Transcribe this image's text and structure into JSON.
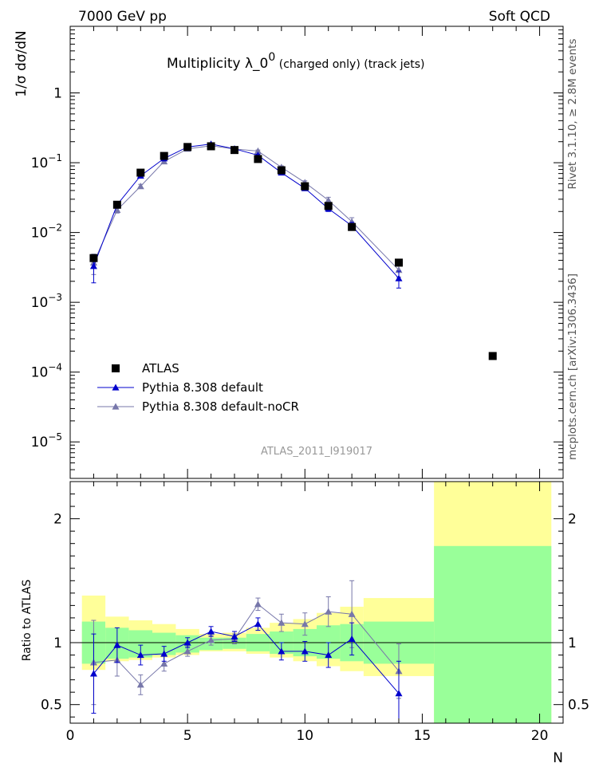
{
  "header": {
    "left": "7000 GeV pp",
    "right": "Soft QCD"
  },
  "side_text": {
    "rivet": "Rivet 3.1.10, ≥ 2.8M events",
    "mcplots": "mcplots.cern.ch [arXiv:1306.3436]"
  },
  "watermark": "ATLAS_2011_I919017",
  "colors": {
    "atlas": "#000000",
    "pythia_default": "#0000cc",
    "pythia_nocr": "#7777aa",
    "band_inner": "#99ff99",
    "band_outer": "#ffff99"
  },
  "chart_data": [
    {
      "type": "scatter",
      "panel": "main",
      "title": "Multiplicity  λ_0⁰ (charged only) (track jets)",
      "title_main": "Multiplicity  λ_0",
      "title_sup": "0",
      "title_suffix": " (charged only) (track jets)",
      "xlabel": "N",
      "ylabel": "1/σ dσ/dN",
      "yscale": "log",
      "xlim": [
        0,
        21
      ],
      "ylim": [
        3e-06,
        9
      ],
      "xticks": [
        0,
        5,
        10,
        15,
        20
      ],
      "ytick_labels": [
        {
          "value": 1,
          "base": "1",
          "exp": ""
        },
        {
          "value": 0.1,
          "base": "10",
          "exp": "−1"
        },
        {
          "value": 0.01,
          "base": "10",
          "exp": "−2"
        },
        {
          "value": 0.001,
          "base": "10",
          "exp": "−3"
        },
        {
          "value": 0.0001,
          "base": "10",
          "exp": "−4"
        },
        {
          "value": 1e-05,
          "base": "10",
          "exp": "−5"
        }
      ],
      "legend_position": "bottom-left",
      "series": [
        {
          "name": "ATLAS",
          "marker": "square",
          "x": [
            1,
            2,
            3,
            4,
            5,
            6,
            7,
            8,
            9,
            10,
            11,
            12,
            14,
            18
          ],
          "y": [
            0.0043,
            0.025,
            0.072,
            0.125,
            0.168,
            0.172,
            0.152,
            0.113,
            0.078,
            0.046,
            0.024,
            0.012,
            0.0037,
            0.00017
          ]
        },
        {
          "name": "Pythia 8.308 default",
          "marker": "triangle",
          "x": [
            1,
            2,
            3,
            4,
            5,
            6,
            7,
            8,
            9,
            10,
            11,
            12,
            14
          ],
          "y": [
            0.0033,
            0.025,
            0.065,
            0.115,
            0.168,
            0.185,
            0.158,
            0.128,
            0.072,
            0.043,
            0.022,
            0.0125,
            0.0022
          ],
          "yerr": [
            0.0014,
            0.002,
            0.003,
            0.004,
            0.005,
            0.005,
            0.005,
            0.004,
            0.003,
            0.002,
            0.002,
            0.0015,
            0.0006
          ]
        },
        {
          "name": "Pythia 8.308 default-noCR",
          "marker": "triangle",
          "x": [
            1,
            2,
            3,
            4,
            5,
            6,
            7,
            8,
            9,
            10,
            11,
            12,
            14
          ],
          "y": [
            0.0037,
            0.021,
            0.046,
            0.104,
            0.158,
            0.175,
            0.157,
            0.147,
            0.086,
            0.052,
            0.029,
            0.0143,
            0.0029
          ],
          "yerr": [
            0.0012,
            0.002,
            0.003,
            0.004,
            0.005,
            0.005,
            0.005,
            0.005,
            0.004,
            0.003,
            0.003,
            0.002,
            0.0006
          ]
        }
      ]
    },
    {
      "type": "scatter",
      "panel": "ratio",
      "xlabel": "N",
      "ylabel": "Ratio to ATLAS",
      "xlim": [
        0,
        21
      ],
      "ylim": [
        0.35,
        2.3
      ],
      "xticks": [
        0,
        5,
        10,
        15,
        20
      ],
      "yticks": [
        0.5,
        1,
        2
      ],
      "bands": [
        {
          "x0": 0.5,
          "x1": 1.5,
          "inner": [
            0.83,
            1.17
          ],
          "outer": [
            0.78,
            1.38
          ]
        },
        {
          "x0": 1.5,
          "x1": 2.5,
          "inner": [
            0.87,
            1.12
          ],
          "outer": [
            0.85,
            1.21
          ]
        },
        {
          "x0": 2.5,
          "x1": 3.5,
          "inner": [
            0.88,
            1.1
          ],
          "outer": [
            0.86,
            1.18
          ]
        },
        {
          "x0": 3.5,
          "x1": 4.5,
          "inner": [
            0.9,
            1.08
          ],
          "outer": [
            0.88,
            1.15
          ]
        },
        {
          "x0": 4.5,
          "x1": 5.5,
          "inner": [
            0.92,
            1.06
          ],
          "outer": [
            0.9,
            1.11
          ]
        },
        {
          "x0": 5.5,
          "x1": 6.5,
          "inner": [
            0.94,
            1.04
          ],
          "outer": [
            0.93,
            1.07
          ]
        },
        {
          "x0": 6.5,
          "x1": 7.5,
          "inner": [
            0.95,
            1.04
          ],
          "outer": [
            0.93,
            1.08
          ]
        },
        {
          "x0": 7.5,
          "x1": 8.5,
          "inner": [
            0.93,
            1.07
          ],
          "outer": [
            0.91,
            1.12
          ]
        },
        {
          "x0": 8.5,
          "x1": 9.5,
          "inner": [
            0.91,
            1.09
          ],
          "outer": [
            0.88,
            1.16
          ]
        },
        {
          "x0": 9.5,
          "x1": 10.5,
          "inner": [
            0.89,
            1.11
          ],
          "outer": [
            0.85,
            1.19
          ]
        },
        {
          "x0": 10.5,
          "x1": 11.5,
          "inner": [
            0.87,
            1.14
          ],
          "outer": [
            0.81,
            1.24
          ]
        },
        {
          "x0": 11.5,
          "x1": 12.5,
          "inner": [
            0.85,
            1.15
          ],
          "outer": [
            0.77,
            1.29
          ]
        },
        {
          "x0": 12.5,
          "x1": 15.5,
          "inner": [
            0.83,
            1.17
          ],
          "outer": [
            0.73,
            1.36
          ]
        },
        {
          "x0": 15.5,
          "x1": 20.5,
          "inner": [
            0.35,
            1.78
          ],
          "outer": [
            0.35,
            2.3
          ]
        }
      ],
      "series": [
        {
          "name": "Pythia 8.308 default",
          "marker": "triangle",
          "x": [
            1,
            2,
            3,
            4,
            5,
            6,
            7,
            8,
            9,
            10,
            11,
            12,
            14
          ],
          "y": [
            0.75,
            0.98,
            0.9,
            0.91,
            1.0,
            1.09,
            1.05,
            1.15,
            0.93,
            0.93,
            0.9,
            1.03,
            0.59
          ],
          "yerr": [
            0.32,
            0.14,
            0.08,
            0.06,
            0.04,
            0.04,
            0.04,
            0.05,
            0.07,
            0.08,
            0.1,
            0.13,
            0.26
          ]
        },
        {
          "name": "Pythia 8.308 default-noCR",
          "marker": "triangle",
          "x": [
            1,
            2,
            3,
            4,
            5,
            6,
            7,
            8,
            9,
            10,
            11,
            12,
            14
          ],
          "y": [
            0.84,
            0.86,
            0.66,
            0.83,
            0.93,
            1.02,
            1.03,
            1.31,
            1.16,
            1.15,
            1.25,
            1.23,
            0.77
          ],
          "yerr": [
            0.34,
            0.13,
            0.08,
            0.06,
            0.04,
            0.04,
            0.04,
            0.05,
            0.07,
            0.09,
            0.12,
            0.27,
            0.22
          ]
        }
      ]
    }
  ]
}
